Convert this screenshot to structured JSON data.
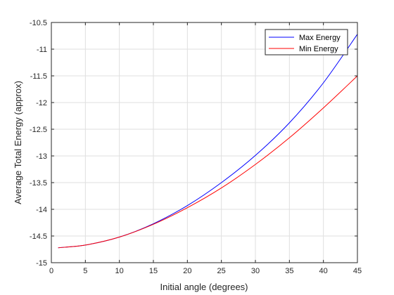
{
  "chart_data": {
    "type": "line",
    "title": "",
    "xlabel": "Initial angle (degrees)",
    "ylabel": "Average Total Energy (approx)",
    "xlim": [
      0,
      45
    ],
    "ylim": [
      -15,
      -10.5
    ],
    "xticks": [
      0,
      5,
      10,
      15,
      20,
      25,
      30,
      35,
      40,
      45
    ],
    "yticks": [
      -15,
      -14.5,
      -14,
      -13.5,
      -13,
      -12.5,
      -12,
      -11.5,
      -11,
      -10.5
    ],
    "xtick_labels": [
      "0",
      "5",
      "10",
      "15",
      "20",
      "25",
      "30",
      "35",
      "40",
      "45"
    ],
    "ytick_labels": [
      "-15",
      "-14.5",
      "-14",
      "-13.5",
      "-13",
      "-12.5",
      "-12",
      "-11.5",
      "-11",
      "-10.5"
    ],
    "grid": true,
    "legend_position": "top-right",
    "x": [
      1,
      5,
      10,
      15,
      20,
      25,
      30,
      35,
      40,
      45
    ],
    "series": [
      {
        "name": "Max Energy",
        "color": "#0000ff",
        "values": [
          -14.72,
          -14.67,
          -14.52,
          -14.27,
          -13.93,
          -13.5,
          -12.99,
          -12.38,
          -11.63,
          -10.72
        ]
      },
      {
        "name": "Min Energy",
        "color": "#ff0000",
        "values": [
          -14.72,
          -14.67,
          -14.52,
          -14.28,
          -13.97,
          -13.6,
          -13.16,
          -12.66,
          -12.1,
          -11.5
        ]
      }
    ]
  }
}
